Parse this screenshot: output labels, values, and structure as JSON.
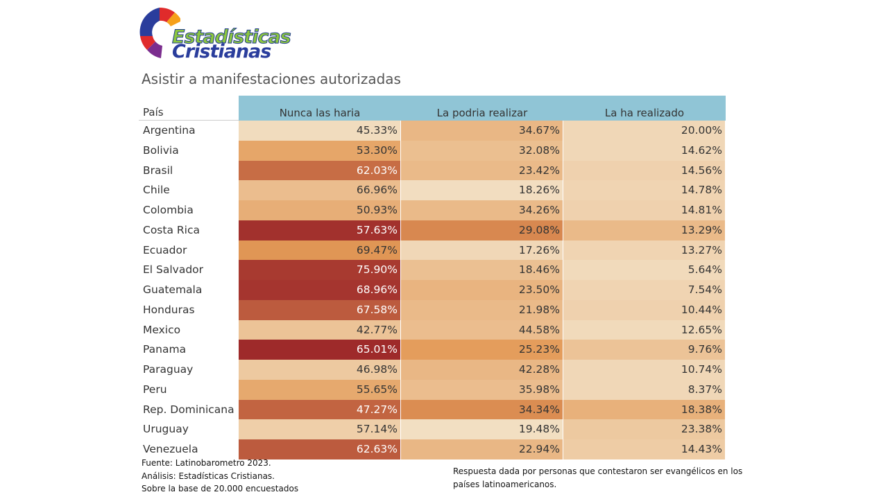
{
  "logo": {
    "line1": "Estadísticas",
    "line2": "Cristianas"
  },
  "colors": {
    "header": "#90c5d6",
    "scale_low": "#f3e3c9",
    "scale_mid": "#e39a57",
    "scale_high": "#9e2a2a"
  },
  "chart_data": {
    "type": "table",
    "title": "Asistir a manifestaciones autorizadas",
    "row_header": "País",
    "columns": [
      "Nunca las haria",
      "La podria realizar",
      "La ha realizado"
    ],
    "rows": [
      {
        "country": "Argentina",
        "values": [
          "45.33%",
          "34.67%",
          "20.00%"
        ],
        "shade": [
          0.05,
          0.3,
          0.08
        ]
      },
      {
        "country": "Bolivia",
        "values": [
          "53.30%",
          "32.08%",
          "14.62%"
        ],
        "shade": [
          0.42,
          0.25,
          0.08
        ]
      },
      {
        "country": "Brasil",
        "values": [
          "62.03%",
          "23.42%",
          "14.56%"
        ],
        "shade": [
          0.7,
          0.28,
          0.12
        ]
      },
      {
        "country": "Chile",
        "values": [
          "66.96%",
          "18.26%",
          "14.78%"
        ],
        "shade": [
          0.26,
          0.04,
          0.1
        ]
      },
      {
        "country": "Colombia",
        "values": [
          "50.93%",
          "34.26%",
          "14.81%"
        ],
        "shade": [
          0.36,
          0.28,
          0.12
        ]
      },
      {
        "country": "Costa Rica",
        "values": [
          "57.63%",
          "29.08%",
          "13.29%"
        ],
        "shade": [
          0.97,
          0.58,
          0.28
        ]
      },
      {
        "country": "Ecuador",
        "values": [
          "69.47%",
          "17.26%",
          "13.27%"
        ],
        "shade": [
          0.52,
          0.08,
          0.1
        ]
      },
      {
        "country": "El Salvador",
        "values": [
          "75.90%",
          "18.46%",
          "5.64%"
        ],
        "shade": [
          0.93,
          0.24,
          0.06
        ]
      },
      {
        "country": "Guatemala",
        "values": [
          "68.96%",
          "23.50%",
          "7.54%"
        ],
        "shade": [
          0.95,
          0.32,
          0.1
        ]
      },
      {
        "country": "Honduras",
        "values": [
          "67.58%",
          "21.98%",
          "10.44%"
        ],
        "shade": [
          0.78,
          0.28,
          0.12
        ]
      },
      {
        "country": "Mexico",
        "values": [
          "42.77%",
          "44.58%",
          "12.65%"
        ],
        "shade": [
          0.22,
          0.26,
          0.06
        ]
      },
      {
        "country": "Panama",
        "values": [
          "65.01%",
          "25.23%",
          "9.76%"
        ],
        "shade": [
          1.0,
          0.48,
          0.22
        ]
      },
      {
        "country": "Paraguay",
        "values": [
          "46.98%",
          "42.28%",
          "10.74%"
        ],
        "shade": [
          0.18,
          0.3,
          0.08
        ]
      },
      {
        "country": "Peru",
        "values": [
          "55.65%",
          "35.98%",
          "8.37%"
        ],
        "shade": [
          0.4,
          0.26,
          0.08
        ]
      },
      {
        "country": "Rep. Dominicana",
        "values": [
          "47.27%",
          "34.34%",
          "18.38%"
        ],
        "shade": [
          0.74,
          0.56,
          0.34
        ]
      },
      {
        "country": "Uruguay",
        "values": [
          "57.14%",
          "19.48%",
          "23.38%"
        ],
        "shade": [
          0.14,
          0.03,
          0.18
        ]
      },
      {
        "country": "Venezuela",
        "values": [
          "62.63%",
          "22.94%",
          "14.43%"
        ],
        "shade": [
          0.78,
          0.3,
          0.16
        ]
      }
    ]
  },
  "footer": {
    "source": "Fuente: Latinobarometro 2023.",
    "analysis": "Análisis: Estadísticas Cristianas.",
    "sample": "Sobre la base de 20.000 encuestados",
    "note": "Respuesta dada por personas que contestaron ser evangélicos en los países latinoamericanos."
  }
}
